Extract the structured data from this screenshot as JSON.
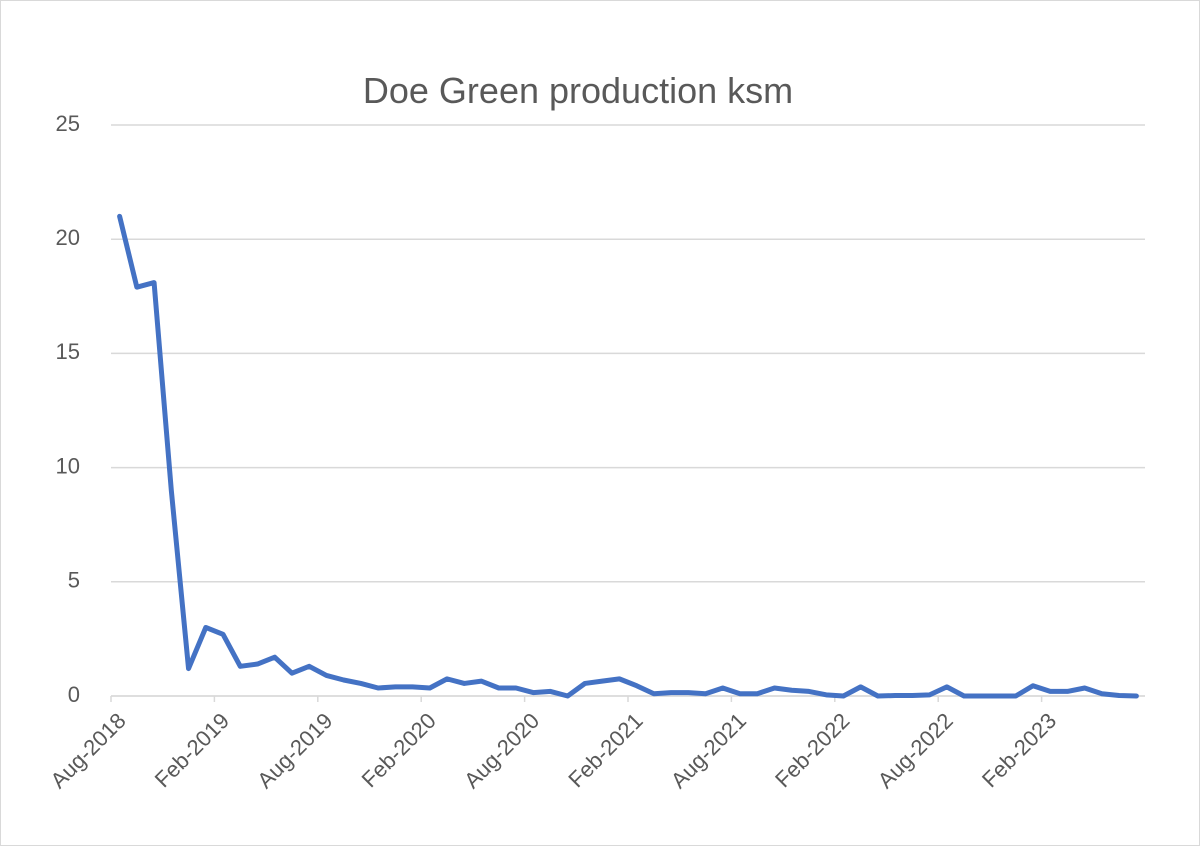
{
  "chart_data": {
    "type": "line",
    "title": "Doe Green production ksm",
    "categories": [
      "Aug-2018",
      null,
      null,
      null,
      null,
      null,
      "Feb-2019",
      null,
      null,
      null,
      null,
      null,
      "Aug-2019",
      null,
      null,
      null,
      null,
      null,
      "Feb-2020",
      null,
      null,
      null,
      null,
      null,
      "Aug-2020",
      null,
      null,
      null,
      null,
      null,
      "Feb-2021",
      null,
      null,
      null,
      null,
      null,
      "Aug-2021",
      null,
      null,
      null,
      null,
      null,
      "Feb-2022",
      null,
      null,
      null,
      null,
      null,
      "Aug-2022",
      null,
      null,
      null,
      null,
      null,
      "Feb-2023",
      null,
      null,
      null,
      null,
      null
    ],
    "series": [
      {
        "name": "Doe Green",
        "color": "#4472c4",
        "values": [
          21.0,
          17.9,
          18.1,
          9.0,
          1.2,
          3.0,
          2.7,
          1.3,
          1.4,
          1.7,
          1.0,
          1.3,
          0.9,
          0.7,
          0.55,
          0.35,
          0.4,
          0.4,
          0.35,
          0.75,
          0.55,
          0.65,
          0.35,
          0.35,
          0.15,
          0.2,
          0.0,
          0.55,
          0.65,
          0.75,
          0.45,
          0.1,
          0.15,
          0.15,
          0.1,
          0.35,
          0.1,
          0.1,
          0.35,
          0.25,
          0.2,
          0.05,
          0.0,
          0.4,
          0.0,
          0.02,
          0.02,
          0.05,
          0.4,
          0.0,
          0.0,
          0.0,
          0.0,
          0.45,
          0.2,
          0.2,
          0.35,
          0.1,
          0.02,
          0.0
        ]
      }
    ],
    "ylim": [
      0,
      25
    ],
    "yticks": [
      0,
      5,
      10,
      15,
      20,
      25
    ],
    "grid": true
  }
}
